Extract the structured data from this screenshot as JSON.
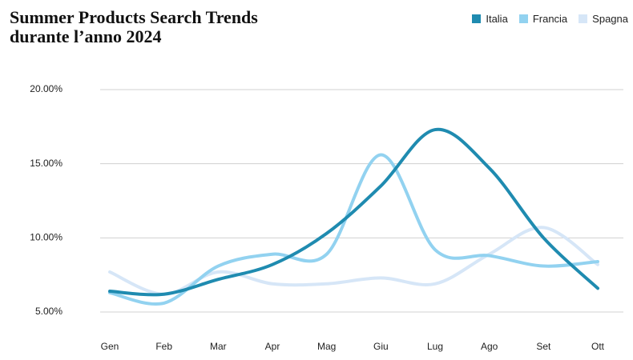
{
  "chart_data": {
    "type": "line",
    "title": "Summer Products Search Trends durante l’anno 2024",
    "categories": [
      "Gen",
      "Feb",
      "Mar",
      "Apr",
      "Mag",
      "Giu",
      "Lug",
      "Ago",
      "Set",
      "Ott"
    ],
    "series": [
      {
        "name": "Italia",
        "color": "#1f8bb0",
        "values": [
          6.4,
          6.2,
          7.2,
          8.2,
          10.3,
          13.5,
          17.3,
          14.7,
          10.0,
          6.6
        ]
      },
      {
        "name": "Francia",
        "color": "#92d2f0",
        "values": [
          6.3,
          5.6,
          8.1,
          8.9,
          8.9,
          15.6,
          9.2,
          8.8,
          8.1,
          8.4
        ]
      },
      {
        "name": "Spagna",
        "color": "#d6e6f7",
        "values": [
          7.7,
          6.2,
          7.7,
          6.9,
          6.9,
          7.3,
          6.9,
          8.9,
          10.7,
          8.2
        ]
      }
    ],
    "ylim": [
      5,
      20
    ],
    "yticks": [
      {
        "value": 5,
        "label": "5.00%"
      },
      {
        "value": 10,
        "label": "10.00%"
      },
      {
        "value": 15,
        "label": "15.00%"
      },
      {
        "value": 20,
        "label": "20.00%"
      }
    ],
    "grid": true
  }
}
